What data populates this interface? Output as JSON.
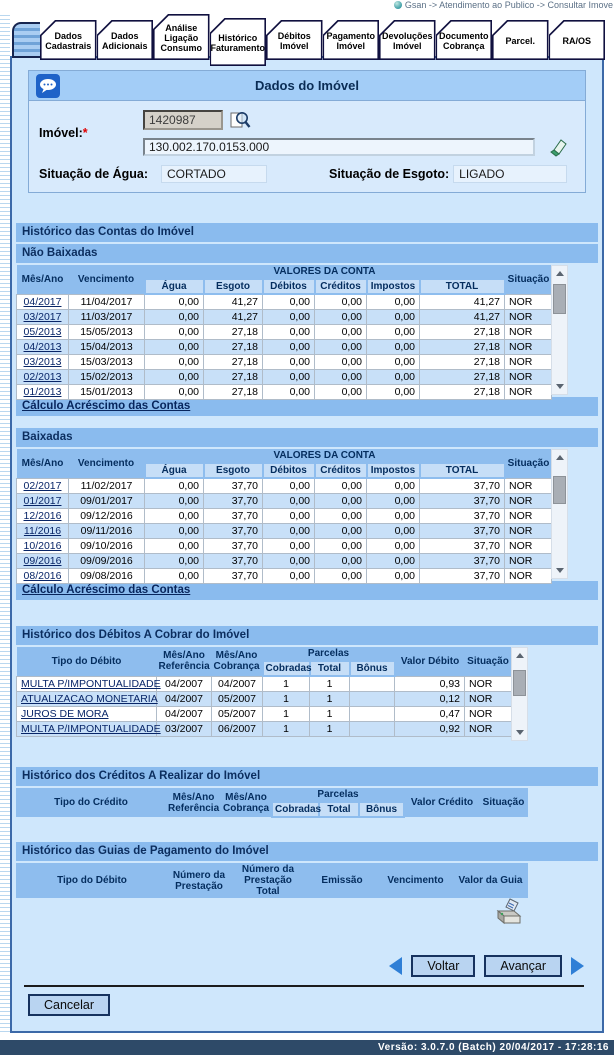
{
  "breadcrumb": {
    "text": "Gsan -> Atendimento ao Publico -> Consultar Imove"
  },
  "tabs": [
    {
      "id": "dados-cadastrais",
      "label": "Dados\nCadastrais"
    },
    {
      "id": "dados-adicionais",
      "label": "Dados\nAdicionais"
    },
    {
      "id": "analise-ligacao-consumo",
      "label": "Análise\nLigação\nConsumo",
      "tall": true
    },
    {
      "id": "historico-faturamento",
      "label": "Histórico\nFaturamento",
      "selected": true,
      "tall": true
    },
    {
      "id": "debitos-imovel",
      "label": "Débitos\nImóvel"
    },
    {
      "id": "pagamento-imovel",
      "label": "Pagamento\nImóvel"
    },
    {
      "id": "devolucoes-imovel",
      "label": "Devoluções\nImóvel"
    },
    {
      "id": "documento-cobranca",
      "label": "Documento\nCobrança"
    },
    {
      "id": "parcel",
      "label": "Parcel."
    },
    {
      "id": "ra-os",
      "label": "RA/OS"
    }
  ],
  "dados_imovel": {
    "title": "Dados do Imóvel",
    "imovel_label": "Imóvel:",
    "imovel_value": "1420987",
    "inscricao_value": "130.002.170.0153.000",
    "situacao_agua_label": "Situação de Água:",
    "situacao_agua_value": "CORTADO",
    "situacao_esgoto_label": "Situação de Esgoto:",
    "situacao_esgoto_value": "LIGADO"
  },
  "contas": {
    "section_title": "Histórico das Contas do Imóvel",
    "nao_baixadas_title": "Não Baixadas",
    "baixadas_title": "Baixadas",
    "calculo_link_label": "Cálculo Acréscimo das Contas",
    "columns": {
      "mes_ano": "Mês/Ano",
      "vencimento": "Vencimento",
      "valores": "VALORES DA CONTA",
      "agua": "Água",
      "esgoto": "Esgoto",
      "debitos": "Débitos",
      "creditos": "Créditos",
      "impostos": "Impostos",
      "total": "TOTAL",
      "situacao": "Situação"
    },
    "nao_baixadas_rows": [
      [
        "04/2017",
        "11/04/2017",
        "0,00",
        "41,27",
        "0,00",
        "0,00",
        "0,00",
        "41,27",
        "NOR"
      ],
      [
        "03/2017",
        "11/03/2017",
        "0,00",
        "41,27",
        "0,00",
        "0,00",
        "0,00",
        "41,27",
        "NOR"
      ],
      [
        "05/2013",
        "15/05/2013",
        "0,00",
        "27,18",
        "0,00",
        "0,00",
        "0,00",
        "27,18",
        "NOR"
      ],
      [
        "04/2013",
        "15/04/2013",
        "0,00",
        "27,18",
        "0,00",
        "0,00",
        "0,00",
        "27,18",
        "NOR"
      ],
      [
        "03/2013",
        "15/03/2013",
        "0,00",
        "27,18",
        "0,00",
        "0,00",
        "0,00",
        "27,18",
        "NOR"
      ],
      [
        "02/2013",
        "15/02/2013",
        "0,00",
        "27,18",
        "0,00",
        "0,00",
        "0,00",
        "27,18",
        "NOR"
      ],
      [
        "01/2013",
        "15/01/2013",
        "0,00",
        "27,18",
        "0,00",
        "0,00",
        "0,00",
        "27,18",
        "NOR"
      ]
    ],
    "baixadas_rows": [
      [
        "02/2017",
        "11/02/2017",
        "0,00",
        "37,70",
        "0,00",
        "0,00",
        "0,00",
        "37,70",
        "NOR"
      ],
      [
        "01/2017",
        "09/01/2017",
        "0,00",
        "37,70",
        "0,00",
        "0,00",
        "0,00",
        "37,70",
        "NOR"
      ],
      [
        "12/2016",
        "09/12/2016",
        "0,00",
        "37,70",
        "0,00",
        "0,00",
        "0,00",
        "37,70",
        "NOR"
      ],
      [
        "11/2016",
        "09/11/2016",
        "0,00",
        "37,70",
        "0,00",
        "0,00",
        "0,00",
        "37,70",
        "NOR"
      ],
      [
        "10/2016",
        "09/10/2016",
        "0,00",
        "37,70",
        "0,00",
        "0,00",
        "0,00",
        "37,70",
        "NOR"
      ],
      [
        "09/2016",
        "09/09/2016",
        "0,00",
        "37,70",
        "0,00",
        "0,00",
        "0,00",
        "37,70",
        "NOR"
      ],
      [
        "08/2016",
        "09/08/2016",
        "0,00",
        "37,70",
        "0,00",
        "0,00",
        "0,00",
        "37,70",
        "NOR"
      ]
    ]
  },
  "debitos": {
    "section_title": "Histórico dos Débitos A Cobrar do Imóvel",
    "columns": {
      "tipo": "Tipo do Débito",
      "referencia": "Mês/Ano\nReferência",
      "cobranca": "Mês/Ano\nCobrança",
      "parcelas": "Parcelas",
      "cobradas": "Cobradas",
      "total": "Total",
      "bonus": "Bônus",
      "valor": "Valor Débito",
      "situacao": "Situação"
    },
    "rows": [
      [
        "MULTA P/IMPONTUALIDADE",
        "04/2007",
        "04/2007",
        "1",
        "1",
        "",
        "0,93",
        "NOR"
      ],
      [
        "ATUALIZACAO MONETARIA",
        "04/2007",
        "05/2007",
        "1",
        "1",
        "",
        "0,12",
        "NOR"
      ],
      [
        "JUROS DE MORA",
        "04/2007",
        "05/2007",
        "1",
        "1",
        "",
        "0,47",
        "NOR"
      ],
      [
        "MULTA P/IMPONTUALIDADE",
        "03/2007",
        "06/2007",
        "1",
        "1",
        "",
        "0,92",
        "NOR"
      ]
    ]
  },
  "creditos": {
    "section_title": "Histórico dos Créditos A Realizar do Imóvel",
    "columns": {
      "tipo": "Tipo do Crédito",
      "referencia": "Mês/Ano\nReferência",
      "cobranca": "Mês/Ano\nCobrança",
      "parcelas": "Parcelas",
      "cobradas": "Cobradas",
      "total": "Total",
      "bonus": "Bônus",
      "valor": "Valor Crédito",
      "situacao": "Situação"
    }
  },
  "guias": {
    "section_title": "Histórico das Guias de Pagamento do Imóvel",
    "columns": {
      "tipo": "Tipo do Débito",
      "numero_prestacao": "Número da\nPrestação",
      "numero_prestacao_total": "Número da\nPrestação Total",
      "emissao": "Emissão",
      "vencimento": "Vencimento",
      "valor": "Valor da Guia"
    }
  },
  "actions": {
    "voltar": "Voltar",
    "avancar": "Avançar",
    "cancelar": "Cancelar"
  },
  "footer": {
    "version_text": "Versão: 3.0.7.0 (Batch) 20/04/2017 - 17:28:16"
  }
}
